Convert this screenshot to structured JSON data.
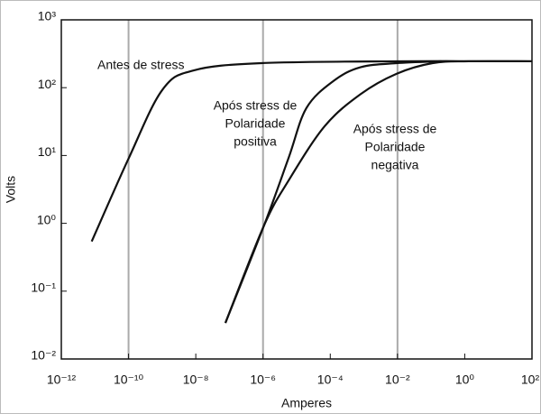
{
  "chart_data": {
    "type": "line",
    "xlabel": "Amperes",
    "ylabel": "Volts",
    "xscale": "log",
    "yscale": "log",
    "xlim": [
      1e-12,
      100
    ],
    "ylim": [
      0.01,
      1000
    ],
    "xticks": [
      {
        "value": 1e-12,
        "label": "10⁻¹²"
      },
      {
        "value": 1e-10,
        "label": "10⁻¹⁰"
      },
      {
        "value": 1e-08,
        "label": "10⁻⁸"
      },
      {
        "value": 1e-06,
        "label": "10⁻⁶"
      },
      {
        "value": 0.0001,
        "label": "10⁻⁴"
      },
      {
        "value": 0.01,
        "label": "10⁻²"
      },
      {
        "value": 1,
        "label": "10⁰"
      },
      {
        "value": 100,
        "label": "10²"
      }
    ],
    "yticks": [
      {
        "value": 0.01,
        "label": "10⁻²"
      },
      {
        "value": 0.1,
        "label": "10⁻¹"
      },
      {
        "value": 1,
        "label": "10⁰"
      },
      {
        "value": 10,
        "label": "10¹"
      },
      {
        "value": 100,
        "label": "10²"
      },
      {
        "value": 1000,
        "label": "10³"
      }
    ],
    "xgrid": [
      1e-10,
      1e-06,
      0.01
    ],
    "series": [
      {
        "name": "Antes de stress",
        "color": "#111111",
        "x": [
          8e-12,
          1e-10,
          1e-09,
          8.7e-09,
          9e-07,
          0.0093,
          100
        ],
        "values": [
          0.54,
          9,
          92,
          180,
          230,
          245,
          245
        ]
      },
      {
        "name": "Após stress de Polaridade positiva",
        "color": "#111111",
        "x": [
          7.6e-08,
          1.07e-06,
          5.8e-06,
          1.95e-05,
          0.000126,
          0.00079,
          0.0093,
          0.2
        ],
        "values": [
          0.034,
          0.93,
          9.3,
          50,
          126,
          200,
          230,
          245
        ]
      },
      {
        "name": "Após stress de Polaridade negativa",
        "color": "#111111",
        "x": [
          7.6e-08,
          1.07e-06,
          5.8e-06,
          6.8e-05,
          0.00079,
          0.0093,
          0.11,
          1.3,
          100
        ],
        "values": [
          0.034,
          0.93,
          4.3,
          27,
          80,
          160,
          230,
          245,
          245
        ]
      }
    ],
    "annotations": [
      {
        "lines": [
          "Antes de stress"
        ]
      },
      {
        "lines": [
          "Após stress de",
          "Polaridade",
          "positiva"
        ]
      },
      {
        "lines": [
          "Após stress de",
          "Polaridade",
          "negativa"
        ]
      }
    ]
  }
}
